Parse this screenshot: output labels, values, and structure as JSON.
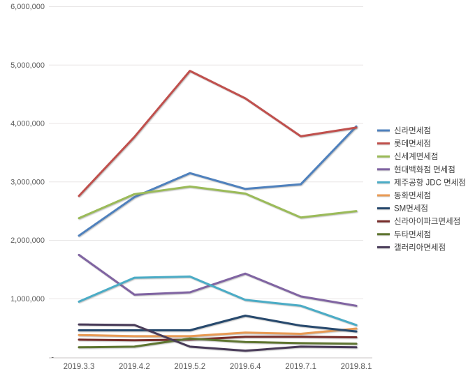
{
  "chart_data": {
    "type": "line",
    "title": "",
    "xlabel": "",
    "ylabel": "",
    "categories": [
      "2019.3.3",
      "2019.4.2",
      "2019.5.2",
      "2019.6.4",
      "2019.7.1",
      "2019.8.1"
    ],
    "y_ticks": [
      "6,000,000",
      "5,000,000",
      "4,000,000",
      "3,000,000",
      "2,000,000",
      "1,000,000",
      "-"
    ],
    "ylim": [
      0,
      6000000
    ],
    "y_gridline_step": 1000000,
    "grid": true,
    "legend_position": "right",
    "axis_text_color": "#595959",
    "legend_text_color": "#404040",
    "gridline_color": "#E8E6E6",
    "axis_line_color": "#C9C6C6",
    "series": [
      {
        "name": "신라면세점",
        "color": "#4F81BD",
        "values": [
          2080000,
          2740000,
          3150000,
          2880000,
          2960000,
          3950000
        ]
      },
      {
        "name": "롯데면세점",
        "color": "#C0504D",
        "values": [
          2760000,
          3770000,
          4900000,
          4430000,
          3780000,
          3930000
        ]
      },
      {
        "name": "신세계면세점",
        "color": "#9BBB59",
        "values": [
          2380000,
          2790000,
          2920000,
          2800000,
          2390000,
          2500000
        ]
      },
      {
        "name": "현대백화점 면세점",
        "color": "#8064A2",
        "values": [
          1750000,
          1070000,
          1110000,
          1430000,
          1040000,
          880000
        ]
      },
      {
        "name": "제주공항 JDC 면세점",
        "color": "#4BACC6",
        "values": [
          950000,
          1360000,
          1380000,
          980000,
          880000,
          550000
        ]
      },
      {
        "name": "동화면세점",
        "color": "#E89A54",
        "values": [
          380000,
          360000,
          360000,
          420000,
          400000,
          490000
        ]
      },
      {
        "name": "SM면세점",
        "color": "#27496D",
        "values": [
          460000,
          460000,
          460000,
          710000,
          540000,
          440000
        ]
      },
      {
        "name": "신라아이파크면세점",
        "color": "#772C2A",
        "values": [
          300000,
          290000,
          300000,
          350000,
          350000,
          340000
        ]
      },
      {
        "name": "두타면세점",
        "color": "#5E7530",
        "values": [
          170000,
          180000,
          320000,
          260000,
          240000,
          230000
        ]
      },
      {
        "name": "갤러리아면세점",
        "color": "#483A58",
        "values": [
          560000,
          550000,
          180000,
          110000,
          180000,
          170000
        ]
      }
    ]
  }
}
